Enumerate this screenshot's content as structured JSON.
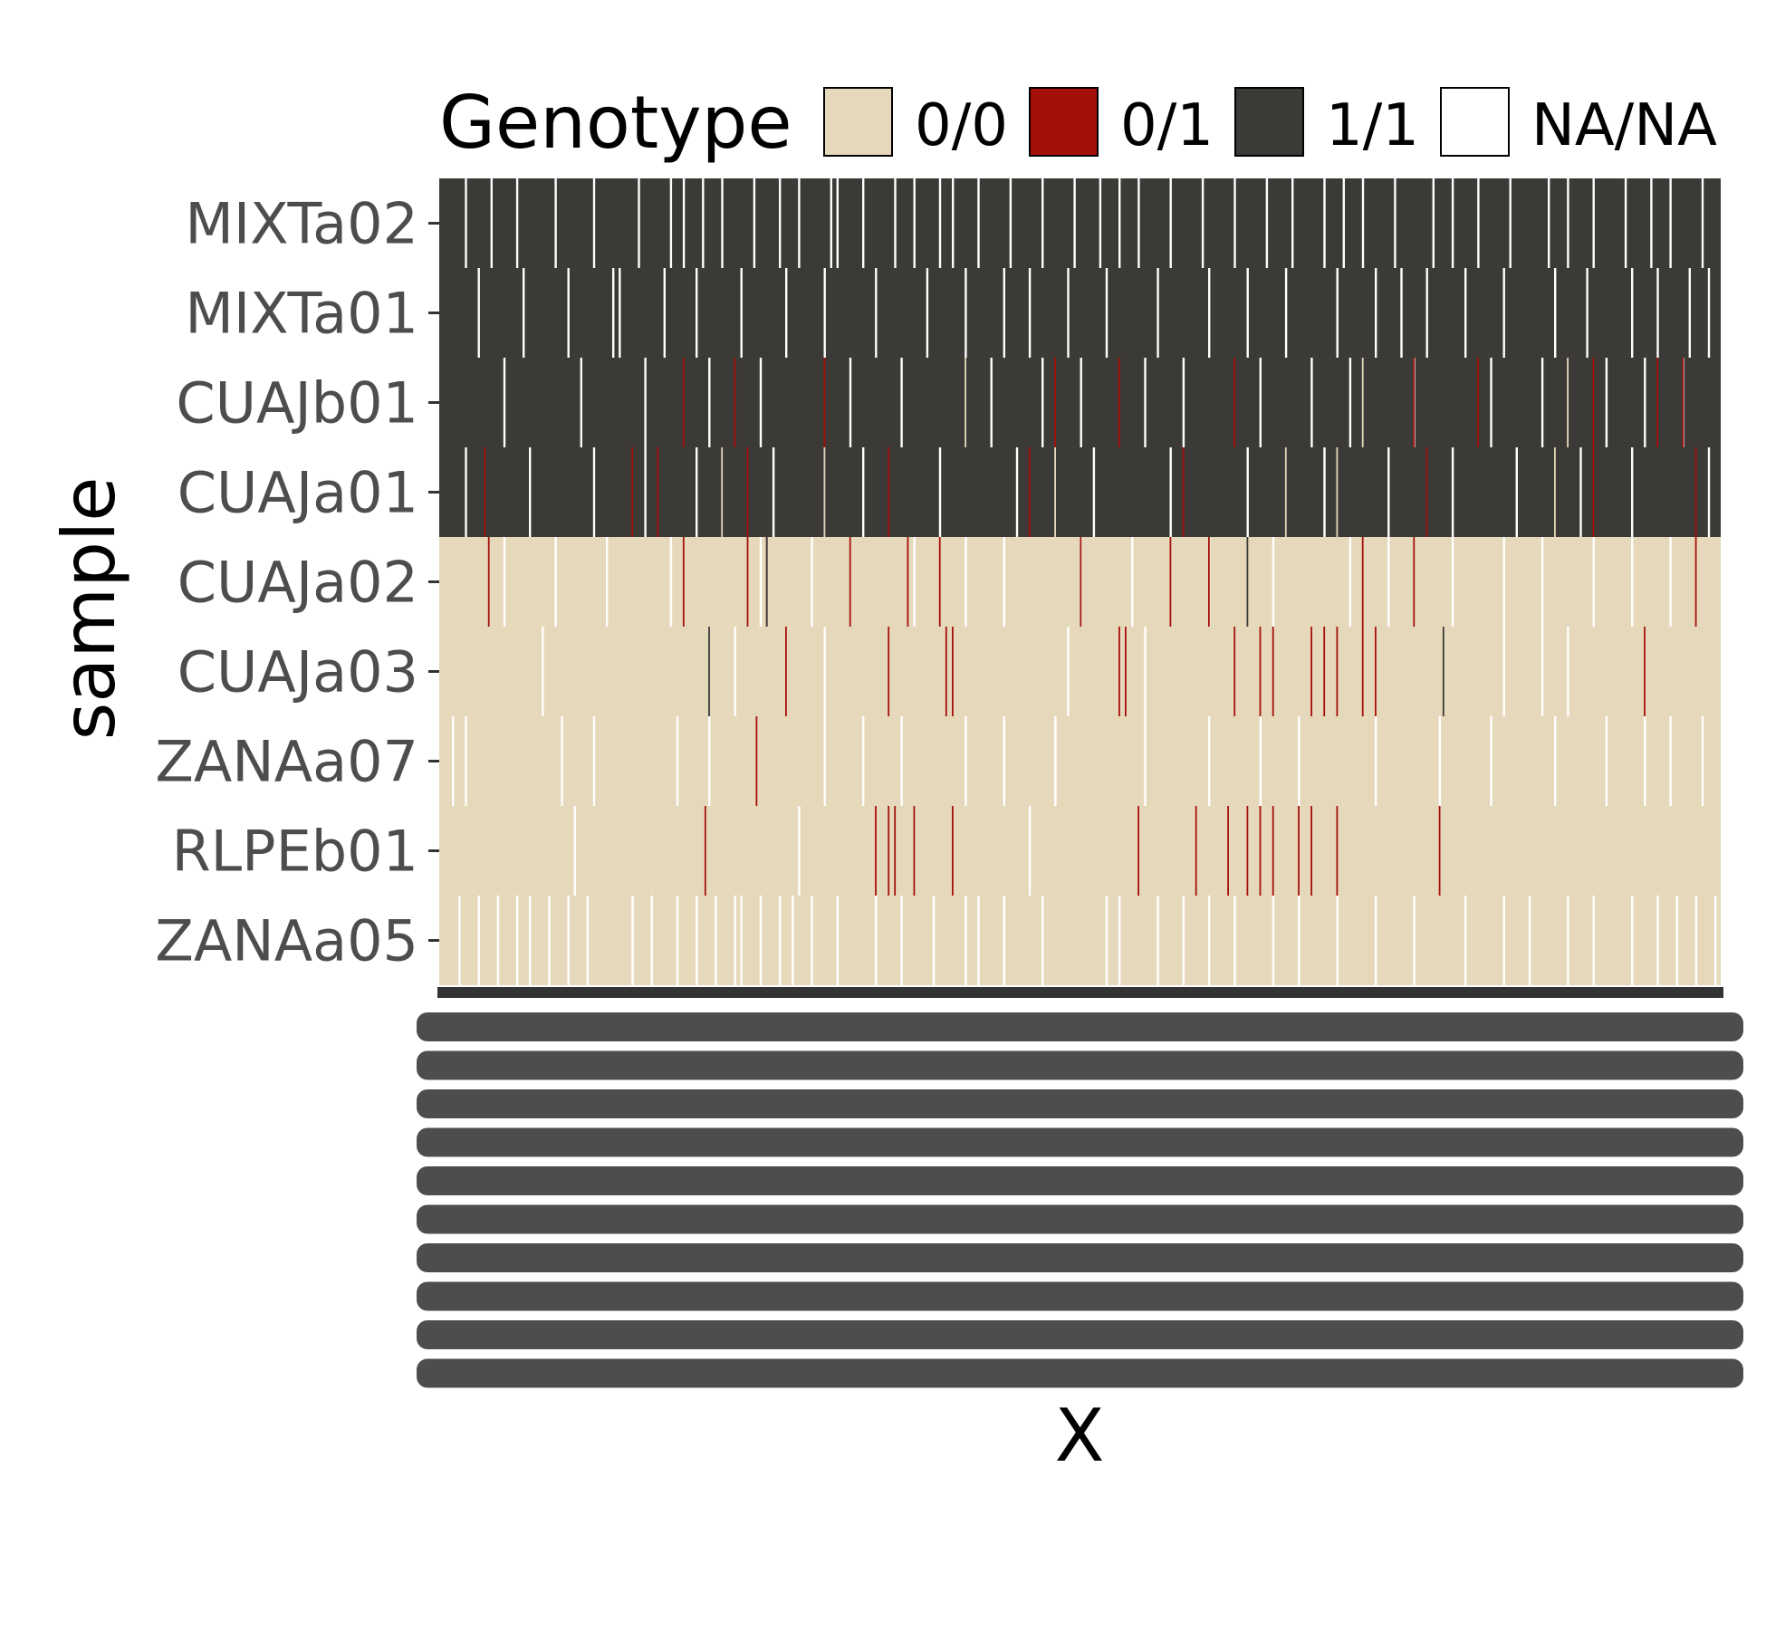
{
  "chart_data": {
    "type": "heatmap",
    "title": "",
    "xlabel": "X",
    "ylabel": "sample",
    "x_tick_labels_legible": false,
    "legend": {
      "title": "Genotype",
      "placement": "top",
      "entries": [
        {
          "label": "0/0",
          "color": "#e6d9bb"
        },
        {
          "label": "0/1",
          "color": "#a50f0a"
        },
        {
          "label": "1/1",
          "color": "#3b3a37"
        },
        {
          "label": "NA/NA",
          "color": "#ffffff"
        }
      ]
    },
    "samples": [
      "MIXTa02",
      "MIXTa01",
      "CUAJb01",
      "CUAJa01",
      "CUAJa02",
      "CUAJa03",
      "ZANAa07",
      "RLPEb01",
      "ZANAa05"
    ],
    "rows": [
      {
        "sample": "MIXTa02",
        "base": "1/1",
        "variants": [
          {
            "genotype": "NA/NA",
            "at": [
              0.02,
              0.04,
              0.06,
              0.09,
              0.12,
              0.155,
              0.18,
              0.19,
              0.205,
              0.22,
              0.245,
              0.265,
              0.28,
              0.305,
              0.31,
              0.33,
              0.355,
              0.37,
              0.39,
              0.4,
              0.42,
              0.445,
              0.47,
              0.495,
              0.515,
              0.53,
              0.545,
              0.57,
              0.595,
              0.62,
              0.645,
              0.665,
              0.69,
              0.705,
              0.72,
              0.745,
              0.775,
              0.79,
              0.81,
              0.835,
              0.865,
              0.88,
              0.9,
              0.925,
              0.945,
              0.96,
              0.985
            ]
          }
        ]
      },
      {
        "sample": "MIXTa01",
        "base": "1/1",
        "variants": [
          {
            "genotype": "NA/NA",
            "at": [
              0.03,
              0.065,
              0.1,
              0.135,
              0.14,
              0.175,
              0.2,
              0.235,
              0.27,
              0.3,
              0.34,
              0.38,
              0.41,
              0.44,
              0.46,
              0.49,
              0.52,
              0.56,
              0.6,
              0.63,
              0.66,
              0.7,
              0.73,
              0.75,
              0.77,
              0.8,
              0.83,
              0.87,
              0.895,
              0.93,
              0.95,
              0.975,
              0.99
            ]
          }
        ]
      },
      {
        "sample": "CUAJb01",
        "base": "1/1",
        "variants": [
          {
            "genotype": "NA/NA",
            "at": [
              0.05,
              0.11,
              0.16,
              0.21,
              0.25,
              0.32,
              0.36,
              0.43,
              0.47,
              0.5,
              0.55,
              0.58,
              0.64,
              0.68,
              0.71,
              0.76,
              0.82,
              0.86,
              0.91,
              0.94,
              0.97
            ]
          },
          {
            "genotype": "0/1",
            "at": [
              0.19,
              0.23,
              0.3,
              0.48,
              0.53,
              0.62,
              0.76,
              0.81,
              0.9,
              0.95,
              0.97
            ]
          },
          {
            "genotype": "0/0",
            "at": [
              0.41,
              0.72,
              0.88
            ]
          }
        ]
      },
      {
        "sample": "CUAJa01",
        "base": "1/1",
        "variants": [
          {
            "genotype": "NA/NA",
            "at": [
              0.02,
              0.07,
              0.12,
              0.16,
              0.2,
              0.26,
              0.33,
              0.39,
              0.45,
              0.51,
              0.57,
              0.63,
              0.69,
              0.74,
              0.79,
              0.84,
              0.89,
              0.93,
              0.99
            ]
          },
          {
            "genotype": "0/1",
            "at": [
              0.035,
              0.15,
              0.17,
              0.24,
              0.35,
              0.46,
              0.58,
              0.77,
              0.9,
              0.98
            ]
          },
          {
            "genotype": "0/0",
            "at": [
              0.22,
              0.3,
              0.48,
              0.66,
              0.7,
              0.87
            ]
          }
        ]
      },
      {
        "sample": "CUAJa02",
        "base": "0/0",
        "variants": [
          {
            "genotype": "NA/NA",
            "at": [
              0.05,
              0.09,
              0.13,
              0.18,
              0.25,
              0.29,
              0.37,
              0.41,
              0.44,
              0.5,
              0.54,
              0.6,
              0.65,
              0.71,
              0.74,
              0.79,
              0.83,
              0.86,
              0.9,
              0.93,
              0.96
            ]
          },
          {
            "genotype": "0/1",
            "at": [
              0.038,
              0.19,
              0.24,
              0.255,
              0.32,
              0.365,
              0.39,
              0.5,
              0.57,
              0.6,
              0.72,
              0.76,
              0.98
            ]
          },
          {
            "genotype": "1/1",
            "at": [
              0.255,
              0.63
            ]
          }
        ]
      },
      {
        "sample": "CUAJa03",
        "base": "0/0",
        "variants": [
          {
            "genotype": "NA/NA",
            "at": [
              0.08,
              0.23,
              0.3,
              0.49,
              0.55,
              0.83,
              0.86,
              0.88
            ]
          },
          {
            "genotype": "0/1",
            "at": [
              0.27,
              0.35,
              0.395,
              0.4,
              0.53,
              0.535,
              0.62,
              0.64,
              0.65,
              0.68,
              0.69,
              0.7,
              0.72,
              0.73,
              0.94
            ]
          },
          {
            "genotype": "1/1",
            "at": [
              0.21,
              0.783
            ]
          }
        ]
      },
      {
        "sample": "ZANAa07",
        "base": "0/0",
        "variants": [
          {
            "genotype": "NA/NA",
            "at": [
              0.01,
              0.02,
              0.095,
              0.12,
              0.185,
              0.21,
              0.3,
              0.33,
              0.36,
              0.41,
              0.44,
              0.48,
              0.55,
              0.6,
              0.64,
              0.67,
              0.73,
              0.78,
              0.82,
              0.87,
              0.91,
              0.94,
              0.96,
              0.985
            ]
          },
          {
            "genotype": "0/1",
            "at": [
              0.247
            ]
          }
        ]
      },
      {
        "sample": "RLPEb01",
        "base": "0/0",
        "variants": [
          {
            "genotype": "NA/NA",
            "at": [
              0.105,
              0.28,
              0.46
            ]
          },
          {
            "genotype": "0/1",
            "at": [
              0.207,
              0.34,
              0.35,
              0.355,
              0.37,
              0.4,
              0.545,
              0.59,
              0.615,
              0.63,
              0.65,
              0.64,
              0.67,
              0.68,
              0.7,
              0.78
            ]
          }
        ]
      },
      {
        "sample": "ZANAa05",
        "base": "0/0",
        "variants": [
          {
            "genotype": "NA/NA",
            "at": [
              0.015,
              0.03,
              0.045,
              0.06,
              0.07,
              0.085,
              0.1,
              0.115,
              0.15,
              0.165,
              0.185,
              0.2,
              0.215,
              0.23,
              0.235,
              0.25,
              0.265,
              0.275,
              0.29,
              0.31,
              0.34,
              0.36,
              0.385,
              0.41,
              0.42,
              0.44,
              0.47,
              0.52,
              0.53,
              0.56,
              0.58,
              0.6,
              0.62,
              0.65,
              0.67,
              0.7,
              0.73,
              0.76,
              0.8,
              0.83,
              0.85,
              0.88,
              0.9,
              0.93,
              0.95,
              0.965,
              0.98,
              0.995
            ]
          }
        ]
      }
    ]
  }
}
